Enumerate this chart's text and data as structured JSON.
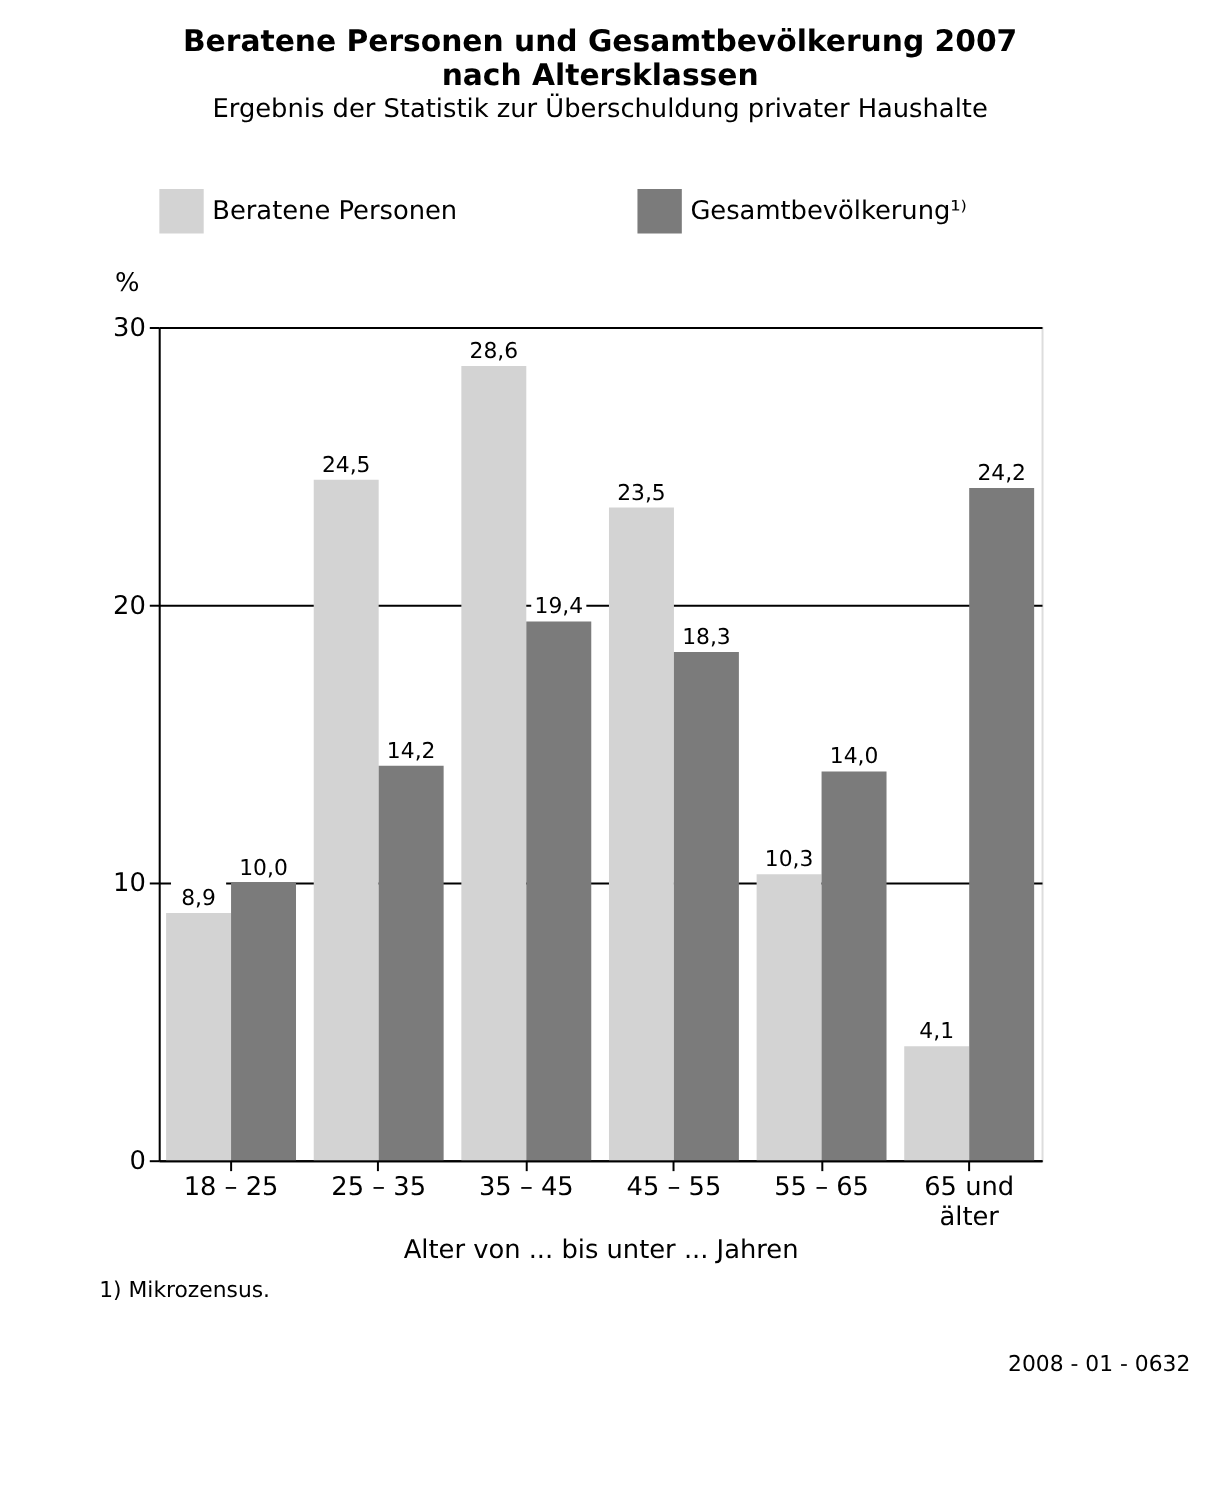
{
  "chart_data": {
    "type": "bar",
    "title": "Beratene Personen und Gesamtbevölkerung 2007\nnach Altersklassen",
    "subtitle": "Ergebnis der Statistik zur Überschuldung privater Haushalte",
    "categories": [
      "18 – 25",
      "25 – 35",
      "35 – 45",
      "45 – 55",
      "55 – 65",
      "65 und\nälter"
    ],
    "series": [
      {
        "name": "Beratene Personen",
        "color": "#d3d3d3",
        "values": [
          8.9,
          24.5,
          28.6,
          23.5,
          10.3,
          4.1
        ],
        "value_labels": [
          "8,9",
          "24,5",
          "28,6",
          "23,5",
          "10,3",
          "4,1"
        ]
      },
      {
        "name": "Gesamtbevölkerung¹⁾",
        "color": "#7b7b7b",
        "values": [
          10.0,
          14.2,
          19.4,
          18.3,
          14.0,
          24.2
        ],
        "value_labels": [
          "10,0",
          "14,2",
          "19,4",
          "18,3",
          "14,0",
          "24,2"
        ]
      }
    ],
    "xlabel": "Alter von ... bis unter ... Jahren",
    "ylabel": "%",
    "ylim": [
      0,
      30
    ],
    "yticks": [
      0,
      10,
      20,
      30
    ],
    "grid": "y",
    "legend": "top",
    "annotations": [
      "1) Mikrozensus.",
      "2008 - 01 - 0632"
    ]
  }
}
